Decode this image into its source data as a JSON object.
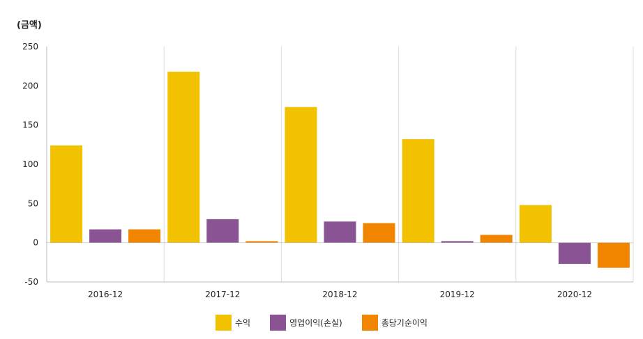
{
  "chart_data": {
    "type": "bar",
    "unit_label": "(금액)",
    "categories": [
      "2016-12",
      "2017-12",
      "2018-12",
      "2019-12",
      "2020-12"
    ],
    "series": [
      {
        "name": "수익",
        "color": "#f2c200",
        "values": [
          124,
          218,
          173,
          132,
          48
        ]
      },
      {
        "name": "영업이익(손실)",
        "color": "#8a5494",
        "values": [
          17,
          30,
          27,
          2,
          -27
        ]
      },
      {
        "name": "총당기순이익",
        "color": "#f28500",
        "values": [
          17,
          2,
          25,
          10,
          -32
        ]
      }
    ],
    "ylim": [
      -50,
      250
    ],
    "yticks": [
      "250",
      "200",
      "150",
      "100",
      "50",
      "0",
      "-50"
    ],
    "grid": "vertical",
    "legend_position": "bottom"
  }
}
